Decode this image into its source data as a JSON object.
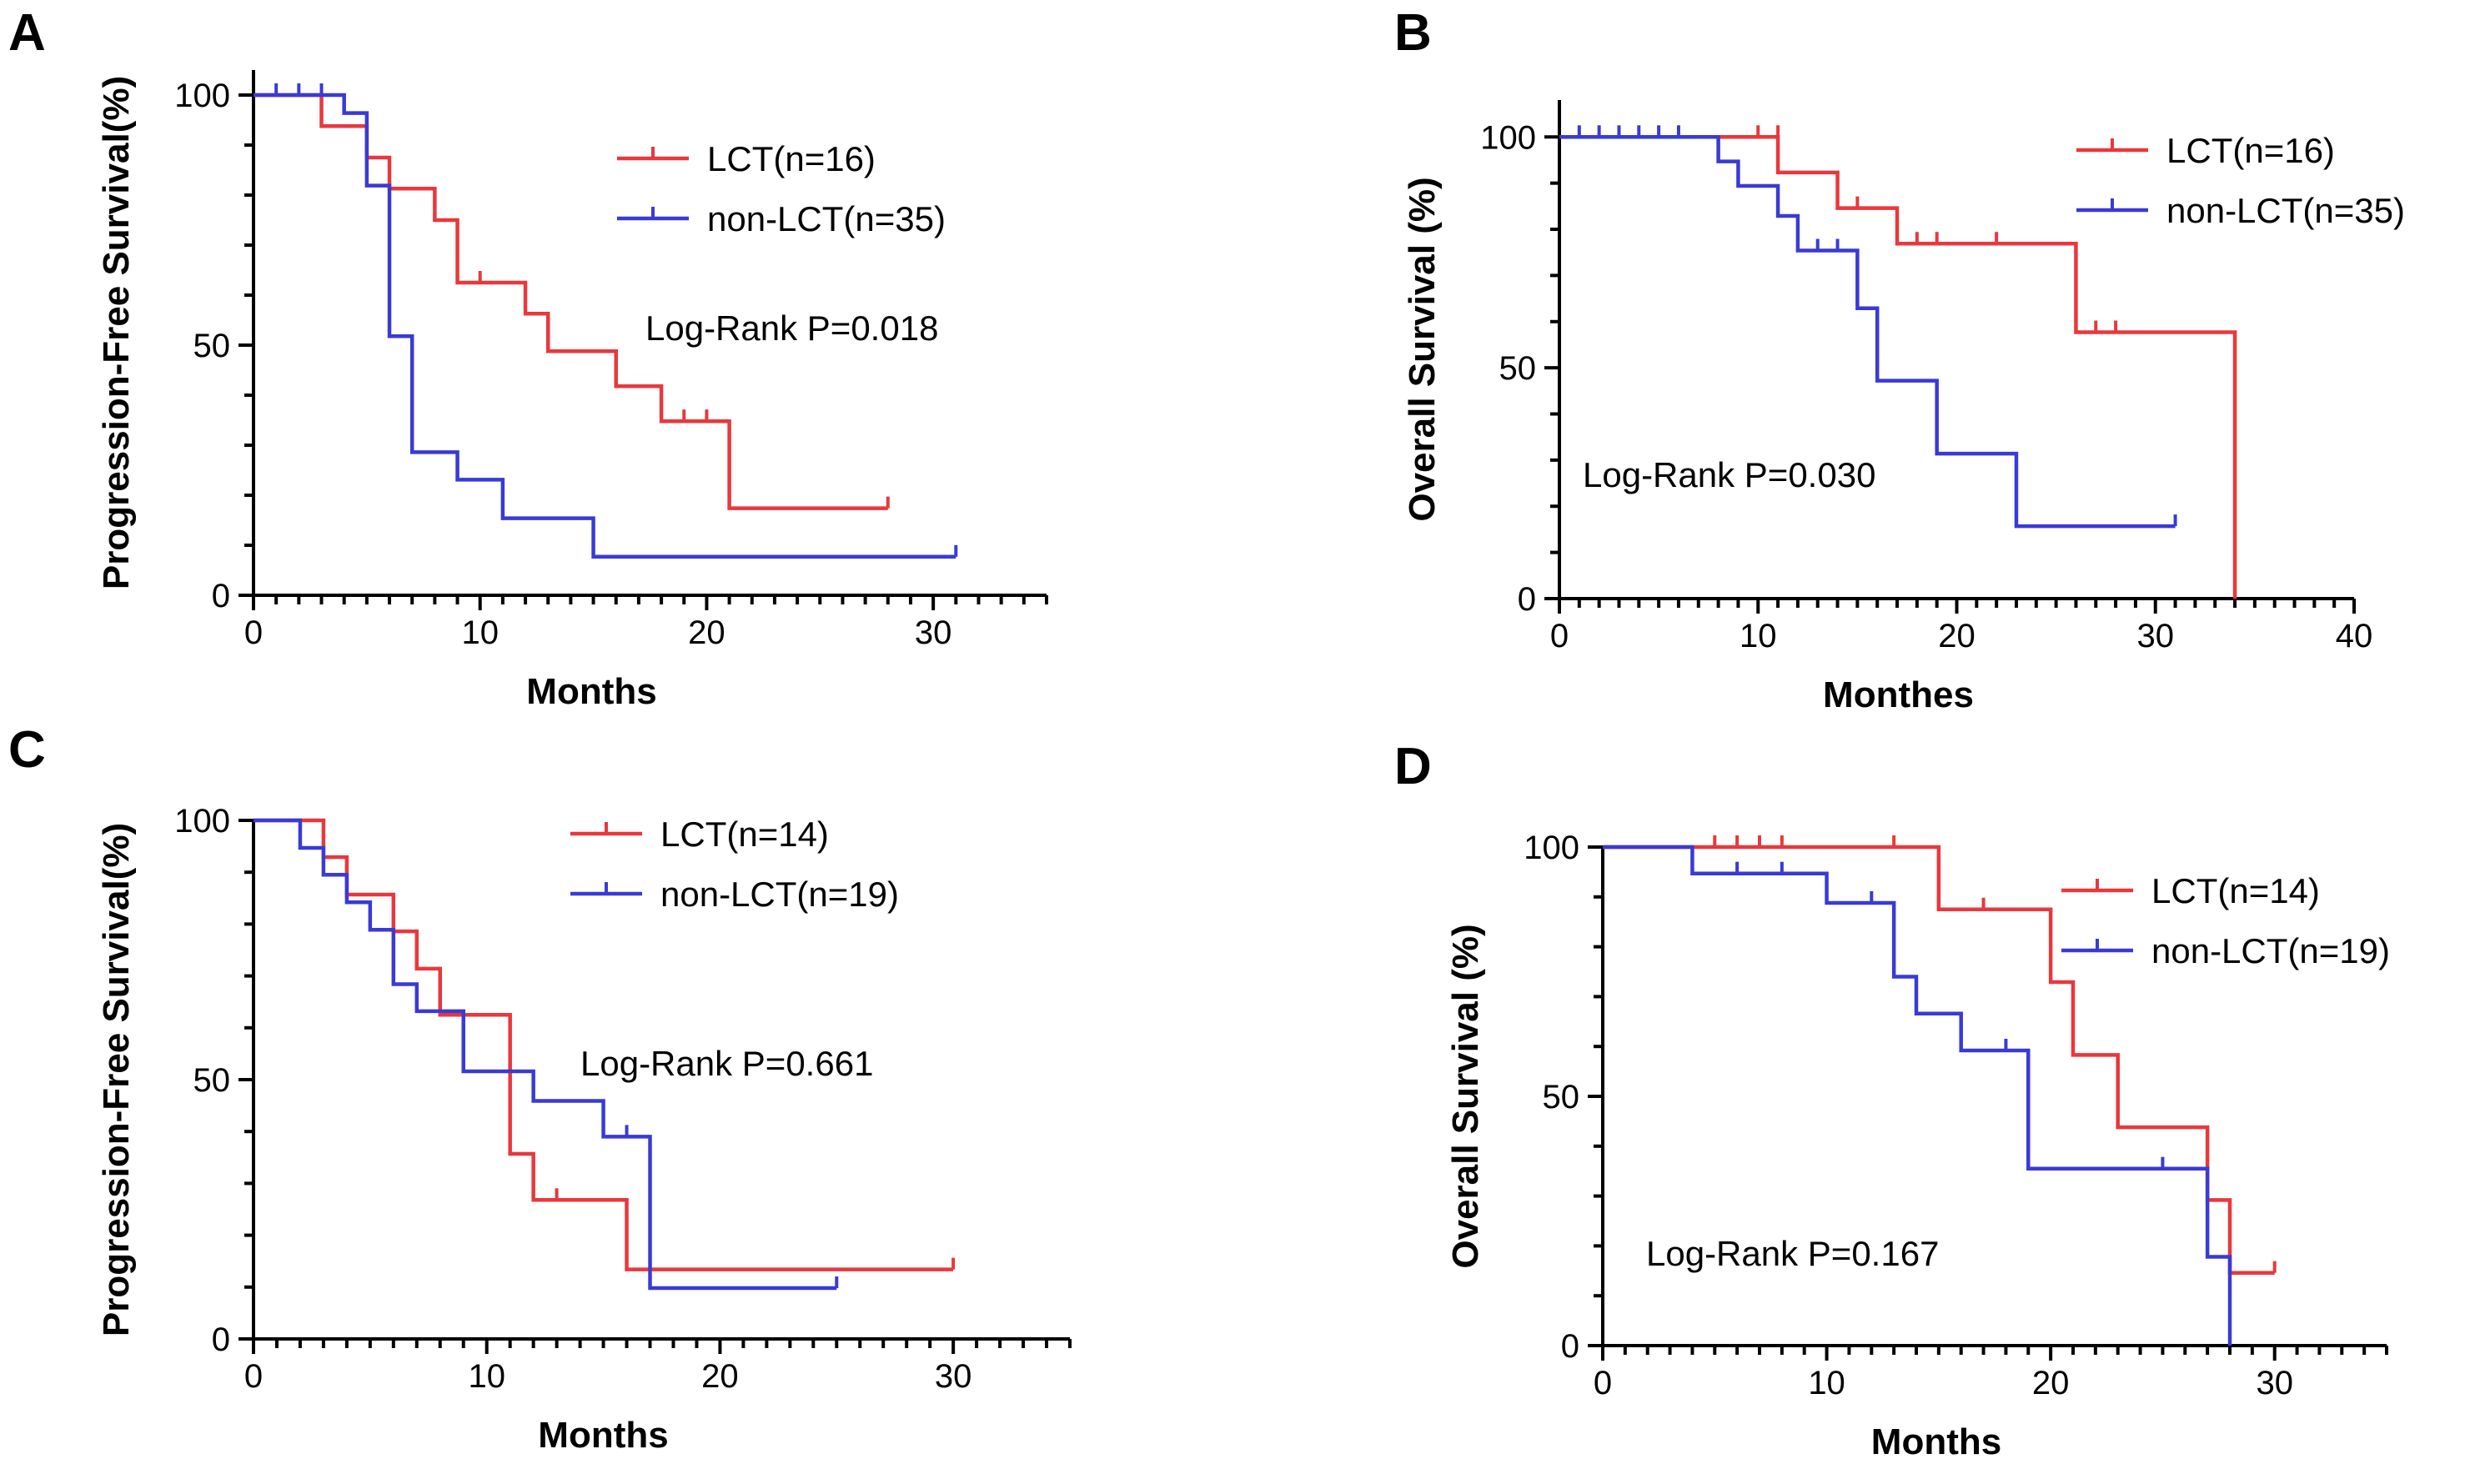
{
  "chart_data": [
    {
      "panel": "A",
      "type": "line",
      "subtype": "kaplan-meier",
      "xlabel": "Months",
      "ylabel": "Progression-Free Survival(%)",
      "xlim": [
        0,
        35
      ],
      "ylim": [
        0,
        105
      ],
      "xticks": [
        0,
        10,
        20,
        30
      ],
      "yticks": [
        0,
        50,
        100
      ],
      "annotation": "Log-Rank P=0.018",
      "series": [
        {
          "name": "LCT(n=16)",
          "color": "#e8383d",
          "steps": [
            [
              0,
              100
            ],
            [
              3,
              93.8
            ],
            [
              5,
              87.5
            ],
            [
              6,
              81.3
            ],
            [
              8,
              75
            ],
            [
              9,
              62.5
            ],
            [
              12,
              56.3
            ],
            [
              13,
              48.8
            ],
            [
              16,
              41.8
            ],
            [
              18,
              34.8
            ],
            [
              21,
              17.4
            ],
            [
              28,
              17.4
            ]
          ],
          "censors": [
            [
              10,
              62.5
            ],
            [
              19,
              34.8
            ],
            [
              20,
              34.8
            ],
            [
              28,
              17.4
            ]
          ]
        },
        {
          "name": "non-LCT(n=35)",
          "color": "#3a3ad6",
          "steps": [
            [
              0,
              100
            ],
            [
              4,
              96.4
            ],
            [
              5,
              81.9
            ],
            [
              6,
              51.8
            ],
            [
              7,
              28.6
            ],
            [
              9,
              23.1
            ],
            [
              11,
              15.4
            ],
            [
              15,
              7.7
            ],
            [
              31,
              7.7
            ]
          ],
          "censors": [
            [
              1,
              100
            ],
            [
              2,
              100
            ],
            [
              3,
              100
            ],
            [
              31,
              7.7
            ]
          ]
        }
      ]
    },
    {
      "panel": "B",
      "type": "line",
      "subtype": "kaplan-meier",
      "xlabel": "Monthes",
      "ylabel": "Overall Survival (%)",
      "xlim": [
        0,
        40
      ],
      "ylim": [
        0,
        108
      ],
      "xticks": [
        0,
        10,
        20,
        30,
        40
      ],
      "yticks": [
        0,
        50,
        100
      ],
      "annotation": "Log-Rank P=0.030",
      "series": [
        {
          "name": "LCT(n=16)",
          "color": "#e8383d",
          "steps": [
            [
              0,
              100
            ],
            [
              11,
              92.3
            ],
            [
              14,
              84.6
            ],
            [
              17,
              76.9
            ],
            [
              26,
              57.7
            ],
            [
              34,
              0
            ]
          ],
          "censors": [
            [
              10,
              100
            ],
            [
              11,
              100
            ],
            [
              15,
              84.6
            ],
            [
              18,
              76.9
            ],
            [
              19,
              76.9
            ],
            [
              22,
              76.9
            ],
            [
              27,
              57.7
            ],
            [
              28,
              57.7
            ]
          ]
        },
        {
          "name": "non-LCT(n=35)",
          "color": "#3a3ad6",
          "steps": [
            [
              0,
              100
            ],
            [
              8,
              94.7
            ],
            [
              9,
              89.4
            ],
            [
              11,
              82.9
            ],
            [
              12,
              75.4
            ],
            [
              15,
              62.9
            ],
            [
              16,
              47.2
            ],
            [
              19,
              31.4
            ],
            [
              23,
              15.7
            ],
            [
              31,
              15.7
            ]
          ],
          "censors": [
            [
              1,
              100
            ],
            [
              2,
              100
            ],
            [
              3,
              100
            ],
            [
              4,
              100
            ],
            [
              5,
              100
            ],
            [
              6,
              100
            ],
            [
              13,
              75.4
            ],
            [
              14,
              75.4
            ],
            [
              31,
              15.7
            ]
          ]
        }
      ]
    },
    {
      "panel": "C",
      "type": "line",
      "subtype": "kaplan-meier",
      "xlabel": "Months",
      "ylabel": "Progression-Free Survival(%)",
      "xlim": [
        0,
        35
      ],
      "ylim": [
        0,
        100
      ],
      "xticks": [
        0,
        10,
        20,
        30
      ],
      "yticks": [
        0,
        50,
        100
      ],
      "annotation": "Log-Rank P=0.661",
      "series": [
        {
          "name": "LCT(n=14)",
          "color": "#e8383d",
          "steps": [
            [
              0,
              100
            ],
            [
              3,
              92.9
            ],
            [
              4,
              85.7
            ],
            [
              6,
              78.6
            ],
            [
              7,
              71.4
            ],
            [
              8,
              62.5
            ],
            [
              11,
              35.7
            ],
            [
              12,
              26.8
            ],
            [
              16,
              13.4
            ],
            [
              30,
              13.4
            ]
          ],
          "censors": [
            [
              13,
              26.8
            ],
            [
              30,
              13.4
            ]
          ]
        },
        {
          "name": "non-LCT(n=19)",
          "color": "#3a3ad6",
          "steps": [
            [
              0,
              100
            ],
            [
              2,
              94.7
            ],
            [
              3,
              89.5
            ],
            [
              4,
              84.2
            ],
            [
              5,
              78.9
            ],
            [
              6,
              68.4
            ],
            [
              7,
              63.2
            ],
            [
              9,
              51.6
            ],
            [
              12,
              45.9
            ],
            [
              15,
              39
            ],
            [
              17,
              9.8
            ],
            [
              25,
              9.8
            ]
          ],
          "censors": [
            [
              16,
              39
            ],
            [
              25,
              9.8
            ]
          ]
        }
      ]
    },
    {
      "panel": "D",
      "type": "line",
      "subtype": "kaplan-meier",
      "xlabel": "Months",
      "ylabel": "Overall Survival (%)",
      "xlim": [
        0,
        35
      ],
      "ylim": [
        0,
        100
      ],
      "xticks": [
        0,
        10,
        20,
        30
      ],
      "yticks": [
        0,
        50,
        100
      ],
      "annotation": "Log-Rank P=0.167",
      "series": [
        {
          "name": "LCT(n=14)",
          "color": "#e8383d",
          "steps": [
            [
              0,
              100
            ],
            [
              15,
              87.5
            ],
            [
              20,
              72.9
            ],
            [
              21,
              58.3
            ],
            [
              23,
              43.8
            ],
            [
              27,
              29.2
            ],
            [
              28,
              14.6
            ],
            [
              30,
              14.6
            ]
          ],
          "censors": [
            [
              5,
              100
            ],
            [
              6,
              100
            ],
            [
              7,
              100
            ],
            [
              8,
              100
            ],
            [
              13,
              100
            ],
            [
              17,
              87.5
            ],
            [
              30,
              14.6
            ]
          ]
        },
        {
          "name": "non-LCT(n=19)",
          "color": "#3a3ad6",
          "steps": [
            [
              0,
              100
            ],
            [
              4,
              94.7
            ],
            [
              10,
              88.8
            ],
            [
              13,
              74
            ],
            [
              14,
              66.6
            ],
            [
              16,
              59.2
            ],
            [
              19,
              35.5
            ],
            [
              27,
              17.8
            ],
            [
              28,
              0
            ]
          ],
          "censors": [
            [
              6,
              94.7
            ],
            [
              8,
              94.7
            ],
            [
              12,
              88.8
            ],
            [
              18,
              59.2
            ],
            [
              25,
              35.5
            ]
          ]
        }
      ]
    }
  ]
}
